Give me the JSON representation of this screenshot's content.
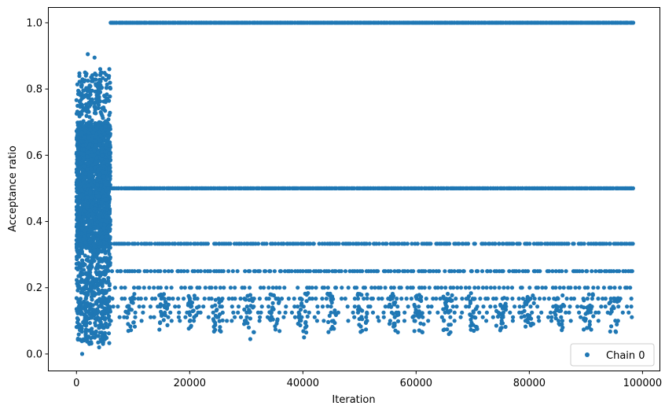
{
  "chart_data": {
    "type": "scatter",
    "xlabel": "Iteration",
    "ylabel": "Acceptance ratio",
    "xlim": [
      -4900,
      103000
    ],
    "ylim": [
      -0.05,
      1.045
    ],
    "xticks": [
      0,
      20000,
      40000,
      60000,
      80000,
      100000
    ],
    "xtick_labels": [
      "0",
      "20000",
      "40000",
      "60000",
      "80000",
      "100000"
    ],
    "yticks": [
      0.0,
      0.2,
      0.4,
      0.6,
      0.8,
      1.0
    ],
    "ytick_labels": [
      "0.0",
      "0.2",
      "0.4",
      "0.6",
      "0.8",
      "1.0"
    ],
    "grid": false,
    "legend_placement": "lower-right",
    "series": [
      {
        "name": "Chain 0",
        "color": "#1f77b4",
        "marker": "circle",
        "burn_in_x_range": [
          0,
          6000
        ],
        "burn_in_y_range": [
          0.0,
          0.9
        ],
        "post_burn_in_x_range": [
          6000,
          98500
        ],
        "post_burn_in_levels": [
          1.0,
          0.5,
          0.333,
          0.25,
          0.2,
          0.167,
          0.143,
          0.125,
          0.111,
          0.1
        ],
        "outliers": [
          {
            "x": 2000,
            "y": 0.905
          },
          {
            "x": 3200,
            "y": 0.895
          },
          {
            "x": 4200,
            "y": 0.86
          },
          {
            "x": 5800,
            "y": 0.86
          },
          {
            "x": 1000,
            "y": 0.0
          },
          {
            "x": 4000,
            "y": 0.02
          },
          {
            "x": 30700,
            "y": 0.045
          },
          {
            "x": 40200,
            "y": 0.05
          },
          {
            "x": 65800,
            "y": 0.06
          },
          {
            "x": 70200,
            "y": 0.07
          }
        ]
      }
    ]
  }
}
